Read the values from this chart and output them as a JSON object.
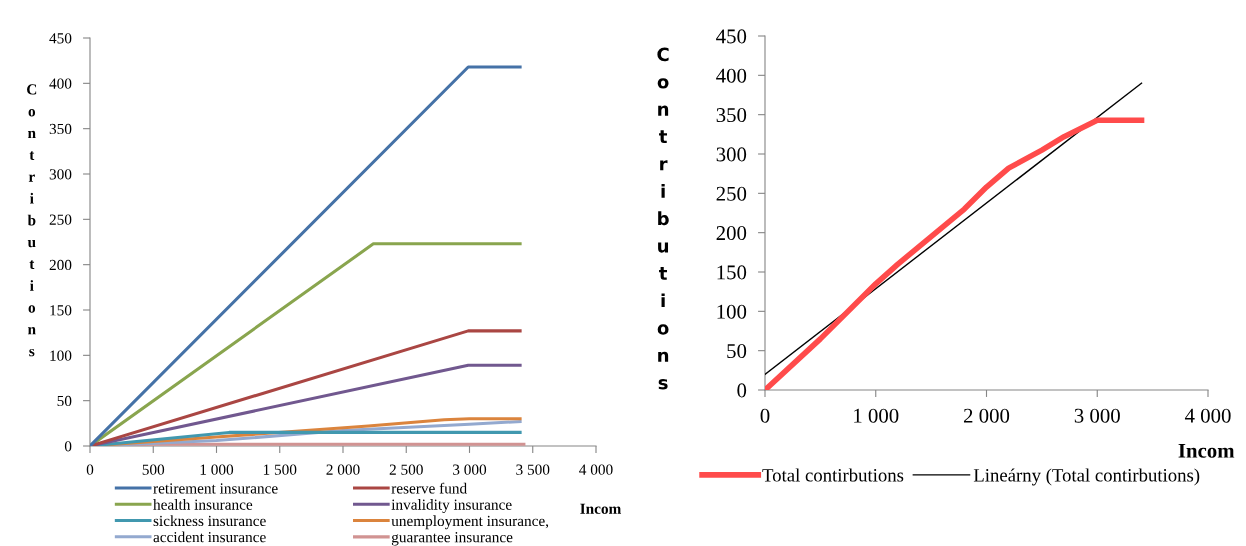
{
  "chart_data": [
    {
      "type": "line",
      "xlabel": "Incom",
      "ylabel": "Contributions",
      "xlim": [
        0,
        4000
      ],
      "ylim": [
        0,
        450
      ],
      "xticks": [
        0,
        500,
        {
          "value": 1000,
          "label": "1 000"
        },
        {
          "value": 1500,
          "label": "1 500"
        },
        {
          "value": 2000,
          "label": "2 000"
        },
        {
          "value": 2500,
          "label": "2 500"
        },
        {
          "value": 3000,
          "label": "3 000"
        },
        {
          "value": 3500,
          "label": "3 500"
        },
        {
          "value": 4000,
          "label": "4 000"
        }
      ],
      "yticks": [
        0,
        50,
        100,
        150,
        200,
        250,
        300,
        350,
        400,
        450
      ],
      "grid": false,
      "legend": "bottom",
      "series": [
        {
          "name": "retirement insurance",
          "color": "#4572a7",
          "x": [
            0,
            2990,
            3400
          ],
          "values": [
            0,
            418,
            418
          ]
        },
        {
          "name": "reserve fund",
          "color": "#aa4643",
          "x": [
            0,
            2990,
            3400
          ],
          "values": [
            0,
            127,
            127
          ]
        },
        {
          "name": "health insurance",
          "color": "#89a54e",
          "x": [
            0,
            2240,
            3400
          ],
          "values": [
            0,
            223,
            223
          ]
        },
        {
          "name": "invalidity insurance",
          "color": "#71588f",
          "x": [
            0,
            2990,
            3400
          ],
          "values": [
            0,
            89,
            89
          ]
        },
        {
          "name": "sickness insurance",
          "color": "#4198af",
          "x": [
            0,
            1100,
            3400
          ],
          "values": [
            0,
            15,
            15
          ]
        },
        {
          "name": "unemployment insurance,",
          "color": "#db843d",
          "x": [
            0,
            1000,
            2200,
            2800,
            3000,
            3400
          ],
          "values": [
            0,
            10,
            22,
            29,
            30,
            30
          ]
        },
        {
          "name": "accident insurance",
          "color": "#93a9cf",
          "x": [
            0,
            1000,
            2000,
            3000,
            3400
          ],
          "values": [
            0,
            6,
            17,
            24,
            27
          ]
        },
        {
          "name": "guarantee insurance",
          "color": "#d19392",
          "x": [
            0,
            500,
            3430
          ],
          "values": [
            0,
            2,
            2
          ]
        }
      ]
    },
    {
      "type": "line",
      "xlabel": "Incom",
      "ylabel": "Contributions",
      "xlim": [
        0,
        4000
      ],
      "ylim": [
        0,
        450
      ],
      "xticks": [
        0,
        {
          "value": 1000,
          "label": "1 000"
        },
        {
          "value": 2000,
          "label": "2 000"
        },
        {
          "value": 3000,
          "label": "3 000"
        },
        {
          "value": 4000,
          "label": "4 000"
        }
      ],
      "yticks": [
        0,
        50,
        100,
        150,
        200,
        250,
        300,
        350,
        400,
        450
      ],
      "grid": false,
      "legend": "bottom",
      "series": [
        {
          "name": "Total contirbutions",
          "color": "#ff4b4b",
          "x": [
            0,
            500,
            1000,
            1200,
            1500,
            1800,
            2000,
            2200,
            2500,
            2700,
            3000,
            3400
          ],
          "values": [
            0,
            65,
            135,
            160,
            195,
            230,
            258,
            282,
            305,
            322,
            343,
            343
          ]
        },
        {
          "name": "Lineárny (Total contirbutions)",
          "color": "#000000",
          "x": [
            0,
            3400
          ],
          "values": [
            20,
            390
          ]
        }
      ]
    }
  ]
}
